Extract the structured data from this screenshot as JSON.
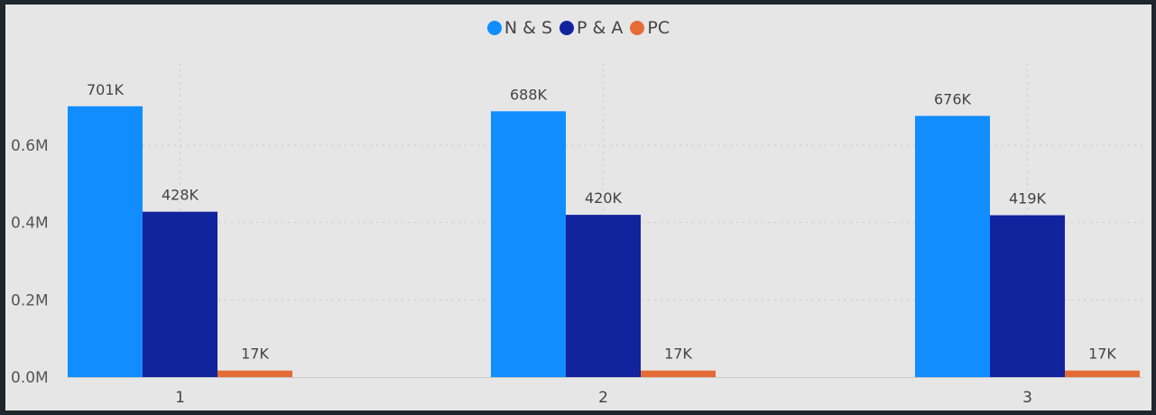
{
  "chart_data": {
    "type": "bar",
    "categories": [
      "1",
      "2",
      "3"
    ],
    "series": [
      {
        "name": "N & S",
        "color": "#118dff",
        "values": [
          701,
          688,
          676
        ],
        "labels": [
          "701K",
          "688K",
          "676K"
        ]
      },
      {
        "name": "P & A",
        "color": "#12239e",
        "values": [
          428,
          420,
          419
        ],
        "labels": [
          "428K",
          "420K",
          "419K"
        ]
      },
      {
        "name": "PC",
        "color": "#e66c37",
        "values": [
          17,
          17,
          17
        ],
        "labels": [
          "17K",
          "17K",
          "17K"
        ]
      }
    ],
    "ylim": [
      0,
      700
    ],
    "yticks": [
      0,
      200,
      400,
      600
    ],
    "ytick_labels": [
      "0.0M",
      "0.2M",
      "0.4M",
      "0.6M"
    ],
    "grid": true,
    "legend_position": "top-center"
  }
}
